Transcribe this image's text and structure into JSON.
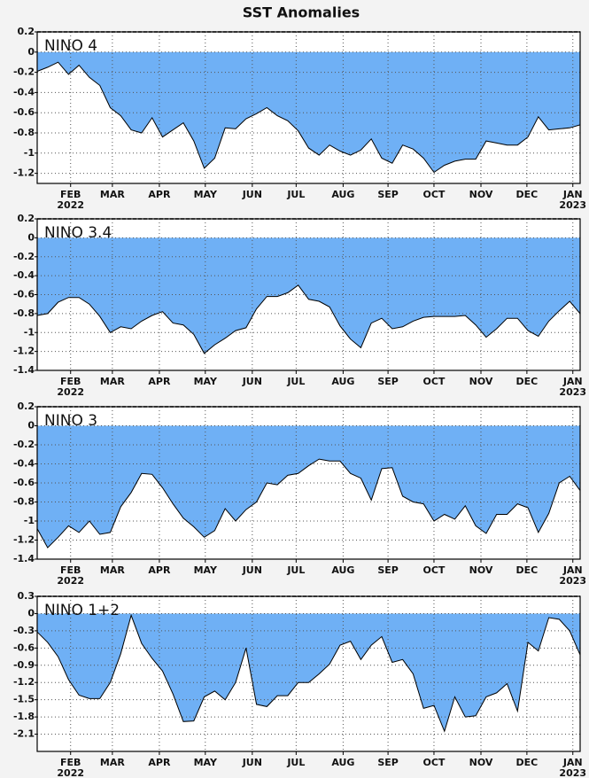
{
  "title": "SST Anomalies",
  "chart_data": [
    {
      "type": "area",
      "title": "NINO 4",
      "color": "#6fb0f5",
      "grid": true,
      "xlim": [
        0,
        52
      ],
      "ylim": [
        -1.3,
        0.2
      ],
      "yticks": [
        0.2,
        0,
        -0.2,
        -0.4,
        -0.6,
        -0.8,
        -1,
        -1.2
      ],
      "xticks": [
        {
          "value": 3.2,
          "label": "FEB",
          "year": "2022"
        },
        {
          "value": 7.2,
          "label": "MAR"
        },
        {
          "value": 11.7,
          "label": "APR"
        },
        {
          "value": 16.1,
          "label": "MAY"
        },
        {
          "value": 20.6,
          "label": "JUN"
        },
        {
          "value": 24.8,
          "label": "JUL"
        },
        {
          "value": 29.3,
          "label": "AUG"
        },
        {
          "value": 33.6,
          "label": "SEP"
        },
        {
          "value": 38.0,
          "label": "OCT"
        },
        {
          "value": 42.5,
          "label": "NOV"
        },
        {
          "value": 46.9,
          "label": "DEC"
        },
        {
          "value": 51.3,
          "label": "JAN",
          "year": "2023"
        }
      ],
      "values": [
        -0.19,
        -0.15,
        -0.1,
        -0.22,
        -0.13,
        -0.25,
        -0.33,
        -0.55,
        -0.63,
        -0.77,
        -0.8,
        -0.65,
        -0.84,
        -0.77,
        -0.7,
        -0.88,
        -1.15,
        -1.05,
        -0.75,
        -0.76,
        -0.66,
        -0.61,
        -0.55,
        -0.63,
        -0.68,
        -0.78,
        -0.95,
        -1.02,
        -0.92,
        -0.98,
        -1.02,
        -0.97,
        -0.86,
        -1.05,
        -1.1,
        -0.92,
        -0.96,
        -1.05,
        -1.19,
        -1.12,
        -1.08,
        -1.06,
        -1.06,
        -0.88,
        -0.9,
        -0.92,
        -0.92,
        -0.84,
        -0.64,
        -0.77,
        -0.76,
        -0.75,
        -0.72
      ]
    },
    {
      "type": "area",
      "title": "NINO 3.4",
      "color": "#6fb0f5",
      "grid": true,
      "xlim": [
        0,
        52
      ],
      "ylim": [
        -1.4,
        0.2
      ],
      "yticks": [
        0.2,
        0,
        -0.2,
        -0.4,
        -0.6,
        -0.8,
        -1,
        -1.2,
        -1.4
      ],
      "xticks": [
        {
          "value": 3.2,
          "label": "FEB",
          "year": "2022"
        },
        {
          "value": 7.2,
          "label": "MAR"
        },
        {
          "value": 11.7,
          "label": "APR"
        },
        {
          "value": 16.1,
          "label": "MAY"
        },
        {
          "value": 20.6,
          "label": "JUN"
        },
        {
          "value": 24.8,
          "label": "JUL"
        },
        {
          "value": 29.3,
          "label": "AUG"
        },
        {
          "value": 33.6,
          "label": "SEP"
        },
        {
          "value": 38.0,
          "label": "OCT"
        },
        {
          "value": 42.5,
          "label": "NOV"
        },
        {
          "value": 46.9,
          "label": "DEC"
        },
        {
          "value": 51.3,
          "label": "JAN",
          "year": "2023"
        }
      ],
      "values": [
        -0.82,
        -0.8,
        -0.68,
        -0.63,
        -0.63,
        -0.7,
        -0.83,
        -1.0,
        -0.94,
        -0.96,
        -0.88,
        -0.82,
        -0.78,
        -0.9,
        -0.92,
        -1.02,
        -1.22,
        -1.13,
        -1.06,
        -0.98,
        -0.95,
        -0.75,
        -0.62,
        -0.62,
        -0.58,
        -0.5,
        -0.65,
        -0.67,
        -0.73,
        -0.93,
        -1.07,
        -1.16,
        -0.9,
        -0.85,
        -0.96,
        -0.94,
        -0.88,
        -0.84,
        -0.83,
        -0.83,
        -0.83,
        -0.82,
        -0.92,
        -1.05,
        -0.96,
        -0.85,
        -0.85,
        -0.98,
        -1.04,
        -0.88,
        -0.77,
        -0.67,
        -0.8
      ]
    },
    {
      "type": "area",
      "title": "NINO 3",
      "color": "#6fb0f5",
      "grid": true,
      "xlim": [
        0,
        52
      ],
      "ylim": [
        -1.4,
        0.2
      ],
      "yticks": [
        0.2,
        0,
        -0.2,
        -0.4,
        -0.6,
        -0.8,
        -1,
        -1.2,
        -1.4
      ],
      "xticks": [
        {
          "value": 3.2,
          "label": "FEB",
          "year": "2022"
        },
        {
          "value": 7.2,
          "label": "MAR"
        },
        {
          "value": 11.7,
          "label": "APR"
        },
        {
          "value": 16.1,
          "label": "MAY"
        },
        {
          "value": 20.6,
          "label": "JUN"
        },
        {
          "value": 24.8,
          "label": "JUL"
        },
        {
          "value": 29.3,
          "label": "AUG"
        },
        {
          "value": 33.6,
          "label": "SEP"
        },
        {
          "value": 38.0,
          "label": "OCT"
        },
        {
          "value": 42.5,
          "label": "NOV"
        },
        {
          "value": 46.9,
          "label": "DEC"
        },
        {
          "value": 51.3,
          "label": "JAN",
          "year": "2023"
        }
      ],
      "values": [
        -1.08,
        -1.28,
        -1.17,
        -1.05,
        -1.12,
        -1.0,
        -1.14,
        -1.12,
        -0.85,
        -0.7,
        -0.5,
        -0.51,
        -0.65,
        -0.82,
        -0.97,
        -1.06,
        -1.17,
        -1.1,
        -0.87,
        -1.0,
        -0.88,
        -0.8,
        -0.6,
        -0.62,
        -0.52,
        -0.5,
        -0.42,
        -0.35,
        -0.37,
        -0.37,
        -0.5,
        -0.55,
        -0.78,
        -0.45,
        -0.44,
        -0.74,
        -0.8,
        -0.82,
        -1.0,
        -0.93,
        -0.98,
        -0.84,
        -1.05,
        -1.13,
        -0.93,
        -0.93,
        -0.82,
        -0.86,
        -1.12,
        -0.92,
        -0.6,
        -0.53,
        -0.68
      ]
    },
    {
      "type": "area",
      "title": "NINO 1+2",
      "color": "#6fb0f5",
      "grid": true,
      "xlim": [
        0,
        52
      ],
      "ylim": [
        -2.4,
        0.3
      ],
      "yticks": [
        0.3,
        0,
        -0.3,
        -0.6,
        -0.9,
        -1.2,
        -1.5,
        -1.8,
        -2.1
      ],
      "xticks": [
        {
          "value": 3.2,
          "label": "FEB",
          "year": "2022"
        },
        {
          "value": 7.2,
          "label": "MAR"
        },
        {
          "value": 11.7,
          "label": "APR"
        },
        {
          "value": 16.1,
          "label": "MAY"
        },
        {
          "value": 20.6,
          "label": "JUN"
        },
        {
          "value": 24.8,
          "label": "JUL"
        },
        {
          "value": 29.3,
          "label": "AUG"
        },
        {
          "value": 33.6,
          "label": "SEP"
        },
        {
          "value": 38.0,
          "label": "OCT"
        },
        {
          "value": 42.5,
          "label": "NOV"
        },
        {
          "value": 46.9,
          "label": "DEC"
        },
        {
          "value": 51.3,
          "label": "JAN",
          "year": "2023"
        }
      ],
      "values": [
        -0.32,
        -0.5,
        -0.75,
        -1.15,
        -1.42,
        -1.48,
        -1.48,
        -1.2,
        -0.7,
        -0.03,
        -0.52,
        -0.78,
        -1.0,
        -1.4,
        -1.88,
        -1.87,
        -1.45,
        -1.35,
        -1.5,
        -1.2,
        -0.6,
        -1.58,
        -1.62,
        -1.43,
        -1.43,
        -1.2,
        -1.2,
        -1.05,
        -0.88,
        -0.55,
        -0.48,
        -0.8,
        -0.55,
        -0.4,
        -0.85,
        -0.8,
        -1.05,
        -1.65,
        -1.6,
        -2.05,
        -1.45,
        -1.8,
        -1.78,
        -1.45,
        -1.38,
        -1.22,
        -1.7,
        -0.5,
        -0.65,
        -0.07,
        -0.1,
        -0.3,
        -0.72
      ]
    }
  ]
}
